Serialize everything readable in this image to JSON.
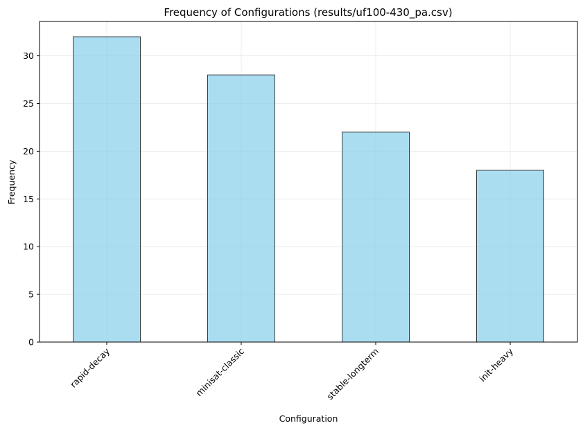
{
  "chart_data": {
    "type": "bar",
    "title": "Frequency of Configurations (results/uf100-430_pa.csv)",
    "xlabel": "Configuration",
    "ylabel": "Frequency",
    "categories": [
      "rapid-decay",
      "minisat-classic",
      "stable-longterm",
      "init-heavy"
    ],
    "values": [
      32,
      28,
      22,
      18
    ],
    "ylim": [
      0,
      33.6
    ],
    "yticks": [
      0,
      5,
      10,
      15,
      20,
      25,
      30
    ],
    "grid": true,
    "legend": "none",
    "colors": {
      "bar_fill": "#87CEEB",
      "bar_fill_opacity": 0.7,
      "bar_edge": "#000000",
      "grid": "#b0b0b0"
    }
  }
}
